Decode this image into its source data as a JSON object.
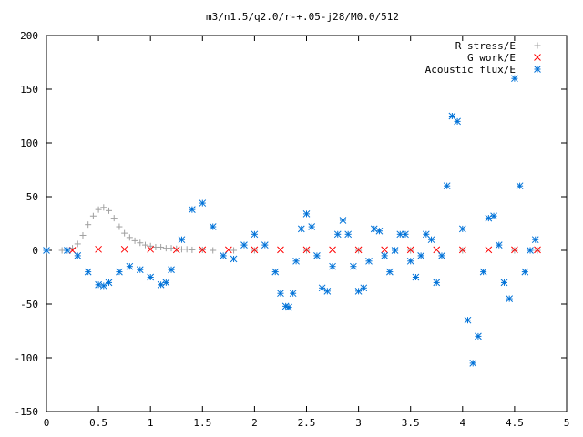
{
  "chart_data": {
    "type": "scatter",
    "title": "m3/n1.5/q2.0/r-+.05-j28/M0.0/512",
    "xlabel": "",
    "ylabel": "",
    "xlim": [
      0,
      5
    ],
    "ylim": [
      -150,
      200
    ],
    "x_ticks": [
      "0",
      "0.5",
      "1",
      "1.5",
      "2",
      "2.5",
      "3",
      "3.5",
      "4",
      "4.5",
      "5"
    ],
    "y_ticks": [
      "-150",
      "-100",
      "-50",
      "0",
      "50",
      "100",
      "150",
      "200"
    ],
    "grid": false,
    "legend_position": "top-right",
    "series": [
      {
        "name": "R stress/E",
        "marker": "plus",
        "color": "#a0a0a0",
        "x": [
          0.15,
          0.25,
          0.3,
          0.35,
          0.4,
          0.45,
          0.5,
          0.55,
          0.6,
          0.65,
          0.7,
          0.75,
          0.8,
          0.85,
          0.9,
          0.95,
          1.0,
          1.05,
          1.1,
          1.15,
          1.2,
          1.25,
          1.3,
          1.35,
          1.4,
          1.5,
          1.6,
          1.8,
          2.0,
          2.5,
          3.0,
          3.5,
          4.0,
          4.5,
          4.72
        ],
        "y": [
          0,
          2,
          6,
          14,
          24,
          32,
          38,
          40,
          37,
          30,
          22,
          16,
          12,
          9,
          7,
          5,
          4,
          3,
          3,
          2,
          2,
          1.5,
          1,
          1,
          0.5,
          0.5,
          0,
          0,
          0,
          0,
          0,
          0,
          0,
          0,
          0
        ]
      },
      {
        "name": "G work/E",
        "marker": "cross",
        "color": "#ff0000",
        "x": [
          0.25,
          0.5,
          0.75,
          1.0,
          1.25,
          1.5,
          1.75,
          2.0,
          2.25,
          2.5,
          2.75,
          3.0,
          3.25,
          3.5,
          3.75,
          4.0,
          4.25,
          4.5,
          4.72
        ],
        "y": [
          0,
          1,
          1,
          1,
          0.5,
          0.5,
          0.5,
          0.5,
          0.5,
          0.5,
          0.5,
          0.5,
          0.5,
          0.5,
          0.5,
          0.5,
          0.5,
          0.5,
          0.5
        ]
      },
      {
        "name": "Acoustic flux/E",
        "marker": "star",
        "color": "#0072d8",
        "x": [
          0.0,
          0.2,
          0.3,
          0.4,
          0.5,
          0.55,
          0.6,
          0.7,
          0.8,
          0.9,
          1.0,
          1.1,
          1.15,
          1.2,
          1.3,
          1.4,
          1.5,
          1.6,
          1.7,
          1.8,
          1.9,
          2.0,
          2.1,
          2.2,
          2.25,
          2.3,
          2.33,
          2.37,
          2.4,
          2.45,
          2.5,
          2.55,
          2.6,
          2.65,
          2.7,
          2.75,
          2.8,
          2.85,
          2.9,
          2.95,
          3.0,
          3.05,
          3.1,
          3.15,
          3.2,
          3.25,
          3.3,
          3.35,
          3.4,
          3.45,
          3.5,
          3.55,
          3.6,
          3.65,
          3.7,
          3.75,
          3.8,
          3.85,
          3.9,
          3.95,
          4.0,
          4.05,
          4.1,
          4.15,
          4.2,
          4.25,
          4.3,
          4.35,
          4.4,
          4.45,
          4.5,
          4.55,
          4.6,
          4.65,
          4.7
        ],
        "y": [
          0,
          0,
          -5,
          -20,
          -32,
          -33,
          -30,
          -20,
          -15,
          -18,
          -25,
          -32,
          -30,
          -18,
          10,
          38,
          44,
          22,
          -5,
          -8,
          5,
          15,
          5,
          -20,
          -40,
          -52,
          -53,
          -40,
          -10,
          20,
          34,
          22,
          -5,
          -35,
          -38,
          -15,
          15,
          28,
          15,
          -15,
          -38,
          -35,
          -10,
          20,
          18,
          -5,
          -20,
          0,
          15,
          15,
          -10,
          -25,
          -5,
          15,
          10,
          -30,
          -5,
          60,
          125,
          120,
          20,
          -65,
          -105,
          -80,
          -20,
          30,
          32,
          5,
          -30,
          -45,
          160,
          60,
          -20,
          0,
          10
        ]
      }
    ]
  }
}
